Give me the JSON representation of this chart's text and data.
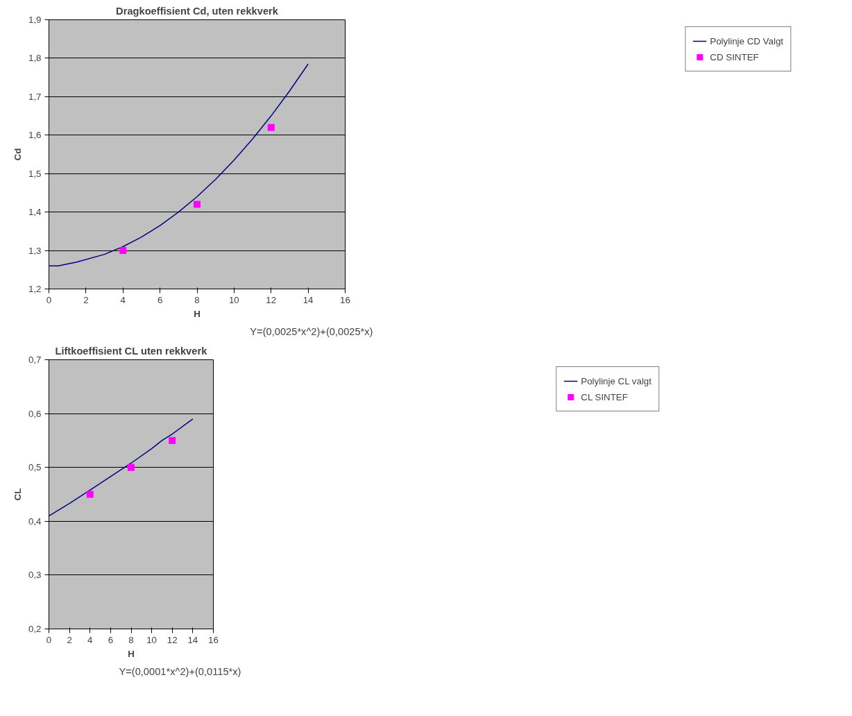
{
  "chart_data": [
    {
      "type": "line",
      "title": "Dragkoeffisient Cd, uten rekkverk",
      "xlabel": "H",
      "ylabel": "Cd",
      "annotations": [
        "Y=(0,0025*x^2)+(0,0025*x)"
      ],
      "xlim": [
        0,
        16
      ],
      "xticks": [
        0,
        2,
        4,
        6,
        8,
        10,
        12,
        14,
        16
      ],
      "ylim": [
        1.2,
        1.9
      ],
      "yticks": [
        {
          "value": 1.2,
          "label": "1,2"
        },
        {
          "value": 1.3,
          "label": "1,3"
        },
        {
          "value": 1.4,
          "label": "1,4"
        },
        {
          "value": 1.5,
          "label": "1,5"
        },
        {
          "value": 1.6,
          "label": "1,6"
        },
        {
          "value": 1.7,
          "label": "1,7"
        },
        {
          "value": 1.8,
          "label": "1,8"
        },
        {
          "value": 1.9,
          "label": "1,9"
        }
      ],
      "grid": "y",
      "legend": "right",
      "series": [
        {
          "name": "Polylinje CD Valgt",
          "color": "#000080",
          "marker": "none",
          "line_style": "solid",
          "x": [
            0,
            0.5,
            1.5,
            3,
            4,
            5,
            6,
            7,
            8,
            9,
            10,
            11,
            12,
            13,
            14
          ],
          "values": [
            1.26,
            1.26,
            1.27,
            1.29,
            1.31,
            1.335,
            1.365,
            1.4,
            1.44,
            1.485,
            1.535,
            1.59,
            1.65,
            1.715,
            1.785
          ]
        },
        {
          "name": "CD SINTEF",
          "type": "scatter",
          "color": "#ff00ff",
          "marker": "square",
          "x": [
            4,
            8,
            12
          ],
          "values": [
            1.3,
            1.42,
            1.62
          ]
        }
      ]
    },
    {
      "type": "line",
      "title": "Liftkoeffisient CL uten rekkverk",
      "xlabel": "H",
      "ylabel": "CL",
      "annotations": [
        "Y=(0,0001*x^2)+(0,0115*x)"
      ],
      "xlim": [
        0,
        16
      ],
      "xticks": [
        0,
        2,
        4,
        6,
        8,
        10,
        12,
        14,
        16
      ],
      "ylim": [
        0.2,
        0.7
      ],
      "yticks": [
        {
          "value": 0.2,
          "label": "0,2"
        },
        {
          "value": 0.3,
          "label": "0,3"
        },
        {
          "value": 0.4,
          "label": "0,4"
        },
        {
          "value": 0.5,
          "label": "0,5"
        },
        {
          "value": 0.6,
          "label": "0,6"
        },
        {
          "value": 0.7,
          "label": "0,7"
        }
      ],
      "grid": "y",
      "legend": "right",
      "series": [
        {
          "name": "Polylinje CL valgt",
          "color": "#000080",
          "marker": "none",
          "line_style": "solid",
          "x": [
            0,
            2,
            4,
            6,
            8,
            10,
            11,
            12,
            14
          ],
          "values": [
            0.41,
            0.433,
            0.458,
            0.483,
            0.508,
            0.535,
            0.55,
            0.562,
            0.59
          ]
        },
        {
          "name": "CL SINTEF",
          "type": "scatter",
          "color": "#ff00ff",
          "marker": "square",
          "x": [
            4,
            8,
            12
          ],
          "values": [
            0.45,
            0.5,
            0.55
          ]
        }
      ]
    }
  ]
}
